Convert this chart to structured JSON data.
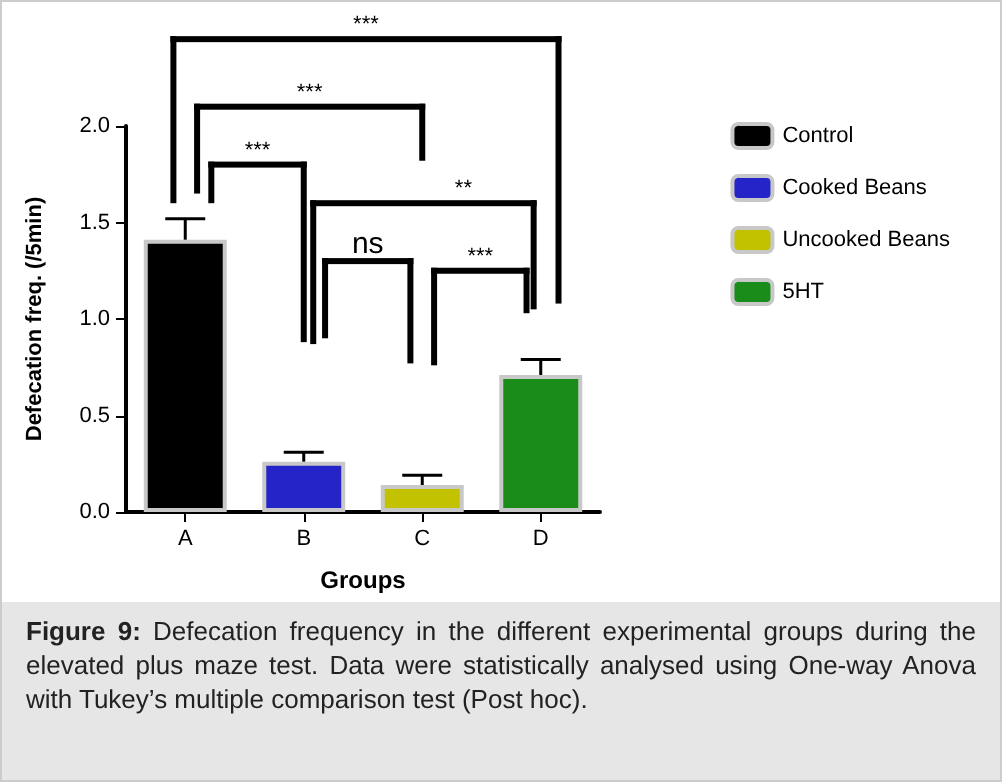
{
  "chart_data": {
    "type": "bar",
    "xlabel": "Groups",
    "ylabel": "Defecation freq. (/5min)",
    "categories": [
      "A",
      "B",
      "C",
      "D"
    ],
    "series": [
      {
        "name": "Control",
        "color": "#000000",
        "values": [
          1.41,
          null,
          null,
          null
        ],
        "errors": [
          0.11,
          null,
          null,
          null
        ]
      },
      {
        "name": "Cooked Beans",
        "color": "#2424c8",
        "values": [
          null,
          0.26,
          null,
          null
        ],
        "errors": [
          null,
          0.05,
          null,
          null
        ]
      },
      {
        "name": "Uncooked Beans",
        "color": "#c2c200",
        "values": [
          null,
          null,
          0.14,
          null
        ],
        "errors": [
          null,
          null,
          0.05,
          null
        ]
      },
      {
        "name": "5HT",
        "color": "#1a8c1a",
        "values": [
          null,
          null,
          null,
          0.71
        ],
        "errors": [
          null,
          null,
          null,
          0.08
        ]
      }
    ],
    "ylim": [
      0,
      2.0
    ],
    "yticks": [
      {
        "value": 0,
        "label": "0.0"
      },
      0.5,
      {
        "value": 1,
        "label": "1.0"
      },
      1.5,
      {
        "value": 2,
        "label": "2.0"
      }
    ],
    "grid": false,
    "legend": "right",
    "annotations": [
      "***",
      "***",
      "***",
      "**",
      "ns",
      "***",
      "Figure 9: Defecation frequency in the different experimental groups during the elevated plus maze test. Data were statistically analysed using One-way Anova with Tukey’s multiple comparison test (Post hoc)."
    ]
  }
}
